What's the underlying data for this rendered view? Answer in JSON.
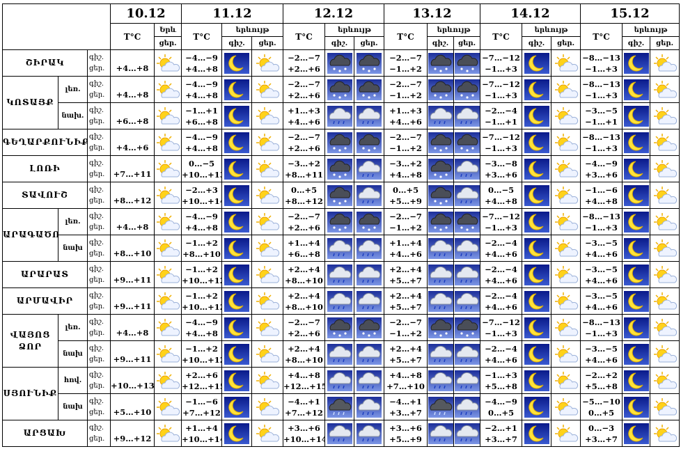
{
  "header": {
    "days": [
      {
        "date": "10.12",
        "temp": "T°C",
        "phenomenon": "Երև",
        "parts": [
          "ցեր."
        ]
      },
      {
        "date": "11.12",
        "temp": "T°C",
        "phenomenon": "երևույթ",
        "parts": [
          "գիշ.",
          "ցեր."
        ]
      },
      {
        "date": "12.12",
        "temp": "T°C",
        "phenomenon": "երևույթ",
        "parts": [
          "գիշ.",
          "ցեր."
        ]
      },
      {
        "date": "13.12",
        "temp": "T°C",
        "phenomenon": "երևույթ",
        "parts": [
          "գիշ.",
          "ցեր."
        ]
      },
      {
        "date": "14.12",
        "temp": "T°C",
        "phenomenon": "երևույթ",
        "parts": [
          "գիշ.",
          "ցեր."
        ]
      },
      {
        "date": "15.12",
        "temp": "T°C",
        "phenomenon": "երևույթ",
        "parts": [
          "գիշ.",
          "ցեր."
        ]
      }
    ]
  },
  "regions": [
    {
      "name": "ՇԻՐԱԿ",
      "rows": [
        {
          "labels": [
            "գիշ.",
            "ցեր."
          ],
          "temps": [
            [
              "+4…+8"
            ],
            [
              "−4…−9",
              "+4…+8"
            ],
            [
              "−2…−7",
              "+2…+6"
            ],
            [
              "−2…−7",
              "−1…+2"
            ],
            [
              "−7…−12",
              "−1…+3"
            ],
            [
              "−8…−13",
              "−1…+3"
            ]
          ]
        }
      ]
    },
    {
      "name": "ԿՈՏԱՅՔ",
      "rows": [
        {
          "sub": "լեռ.",
          "labels": [
            "գիշ.",
            "ցեր."
          ],
          "temps": [
            [
              "+4…+8"
            ],
            [
              "−4…−9",
              "+4…+8"
            ],
            [
              "−2…−7",
              "+2…+6"
            ],
            [
              "−2…−7",
              "−1…+2"
            ],
            [
              "−7…−12",
              "−1…+3"
            ],
            [
              "−8…−13",
              "−1…+3"
            ]
          ]
        },
        {
          "sub": "նախ.",
          "labels": [
            "գիշ.",
            "ցեր."
          ],
          "temps": [
            [
              "+6…+8"
            ],
            [
              "−1…+1",
              "+6…+8"
            ],
            [
              "+1…+3",
              "+4…+6"
            ],
            [
              "+1…+3",
              "+4…+6"
            ],
            [
              "−2…−4",
              "−1…+1"
            ],
            [
              "−3…−5",
              "−1…+1"
            ]
          ]
        }
      ]
    },
    {
      "name": "ԳԵՂԱՐՔՈՒՆԻՔ",
      "rows": [
        {
          "labels": [
            "գիշ.",
            "ցեր."
          ],
          "temps": [
            [
              "+4…+6"
            ],
            [
              "−4…−9",
              "+4…+8"
            ],
            [
              "−2…−7",
              "+2…+6"
            ],
            [
              "−2…−7",
              "−1…+2"
            ],
            [
              "−7…−12",
              "−1…+3"
            ],
            [
              "−8…−13",
              "−1…+3"
            ]
          ]
        }
      ]
    },
    {
      "name": "ԼՈՌԻ",
      "rows": [
        {
          "labels": [
            "գիշ.",
            "ցեր."
          ],
          "temps": [
            [
              "+7…+11"
            ],
            [
              "0…−5",
              "+10…+13"
            ],
            [
              "−3…+2",
              "+8…+11"
            ],
            [
              "−3…+2",
              "+4…+8"
            ],
            [
              "−3…−8",
              "+3…+6"
            ],
            [
              "−4…−9",
              "+3…+6"
            ]
          ]
        }
      ]
    },
    {
      "name": "ՏԱՎՈՒՇ",
      "rows": [
        {
          "labels": [
            "գիշ.",
            "ցեր."
          ],
          "temps": [
            [
              "+8…+12"
            ],
            [
              "−2…+3",
              "+10…+14"
            ],
            [
              "0…+5",
              "+8…+12"
            ],
            [
              "0…+5",
              "+5…+9"
            ],
            [
              "0…−5",
              "+4…+8"
            ],
            [
              "−1…−6",
              "+4…+8"
            ]
          ]
        }
      ]
    },
    {
      "name": "ԱՐԱԳԱԾՈՏՆ",
      "rows": [
        {
          "sub": "լեռ.",
          "labels": [
            "գիշ.",
            "ցեր."
          ],
          "temps": [
            [
              "+4…+8"
            ],
            [
              "−4…−9",
              "+4…+8"
            ],
            [
              "−2…−7",
              "+2…+6"
            ],
            [
              "−2…−7",
              "−1…+2"
            ],
            [
              "−7…−12",
              "−1…+3"
            ],
            [
              "−8…−13",
              "−1…+3"
            ]
          ]
        },
        {
          "sub": "նախ",
          "labels": [
            "գիշ.",
            "ցեր."
          ],
          "temps": [
            [
              "+8…+10"
            ],
            [
              "−1…+2",
              "+8…+10"
            ],
            [
              "+1…+4",
              "+6…+8"
            ],
            [
              "+1…+4",
              "+4…+6"
            ],
            [
              "−2…−4",
              "+4…+6"
            ],
            [
              "−3…−5",
              "+4…+6"
            ]
          ]
        }
      ]
    },
    {
      "name": "ԱՐԱՐԱՏ",
      "rows": [
        {
          "labels": [
            "գիշ.",
            "ցեր."
          ],
          "temps": [
            [
              "+9…+11"
            ],
            [
              "−1…+2",
              "+10…+12"
            ],
            [
              "+2…+4",
              "+8…+10"
            ],
            [
              "+2…+4",
              "+5…+7"
            ],
            [
              "−2…−4",
              "+4…+6"
            ],
            [
              "−3…−5",
              "+4…+6"
            ]
          ]
        }
      ]
    },
    {
      "name": "ԱՐՄԱՎԻՐ",
      "rows": [
        {
          "labels": [
            "գիշ.",
            "ցեր."
          ],
          "temps": [
            [
              "+9…+11"
            ],
            [
              "−1…+2",
              "+10…+12"
            ],
            [
              "+2…+4",
              "+8…+10"
            ],
            [
              "+2…+4",
              "+5…+7"
            ],
            [
              "−2…−4",
              "+4…+6"
            ],
            [
              "−3…−5",
              "+4…+6"
            ]
          ]
        }
      ]
    },
    {
      "name": "ՎԱՅՈՑ ՁՈՐ",
      "rows": [
        {
          "sub": "լեռ.",
          "labels": [
            "գիշ.",
            "ցեր."
          ],
          "temps": [
            [
              "+4…+8"
            ],
            [
              "−4…−9",
              "+4…+8"
            ],
            [
              "−2…−7",
              "+2…+6"
            ],
            [
              "−2…−7",
              "−1…+2"
            ],
            [
              "−7…−12",
              "−1…+3"
            ],
            [
              "−8…−13",
              "−1…+3"
            ]
          ]
        },
        {
          "sub": "նախ",
          "labels": [
            "գիշ.",
            "ցեր."
          ],
          "temps": [
            [
              "+9…+11"
            ],
            [
              "−1…+2",
              "+10…+12"
            ],
            [
              "+2…+4",
              "+8…+10"
            ],
            [
              "+2…+4",
              "+5…+7"
            ],
            [
              "−2…−4",
              "+4…+6"
            ],
            [
              "−3…−5",
              "+4…+6"
            ]
          ]
        }
      ]
    },
    {
      "name": "ՍՅՈՒՆԻՔ",
      "rows": [
        {
          "sub": "հով.",
          "labels": [
            "գիշ.",
            "ցեր."
          ],
          "temps": [
            [
              "+10…+13"
            ],
            [
              "+2…+6",
              "+12…+15"
            ],
            [
              "+4…+8",
              "+12…+15"
            ],
            [
              "+4…+8",
              "+7…+10"
            ],
            [
              "−1…+3",
              "+5…+8"
            ],
            [
              "−2…+2",
              "+5…+8"
            ]
          ]
        },
        {
          "sub": "նախ",
          "labels": [
            "գիշ.",
            "ցեր."
          ],
          "temps": [
            [
              "+5…+10"
            ],
            [
              "−1…−6",
              "+7…+12"
            ],
            [
              "−4…+1",
              "+7…+12"
            ],
            [
              "−4…+1",
              "+3…+7"
            ],
            [
              "−4…−9",
              "0…+5"
            ],
            [
              "−5…−10",
              "0…+5"
            ]
          ]
        }
      ]
    },
    {
      "name": "ԱՐՑԱԽ",
      "rows": [
        {
          "labels": [
            "գիշ.",
            "ցեր."
          ],
          "temps": [
            [
              "+9…+12"
            ],
            [
              "+1…+4",
              "+10…+14"
            ],
            [
              "+3…+6",
              "+10…+14"
            ],
            [
              "+3…+6",
              "+5…+9"
            ],
            [
              "−2…+1",
              "+3…+7"
            ],
            [
              "0…−3",
              "+3…+7"
            ]
          ]
        }
      ]
    }
  ]
}
